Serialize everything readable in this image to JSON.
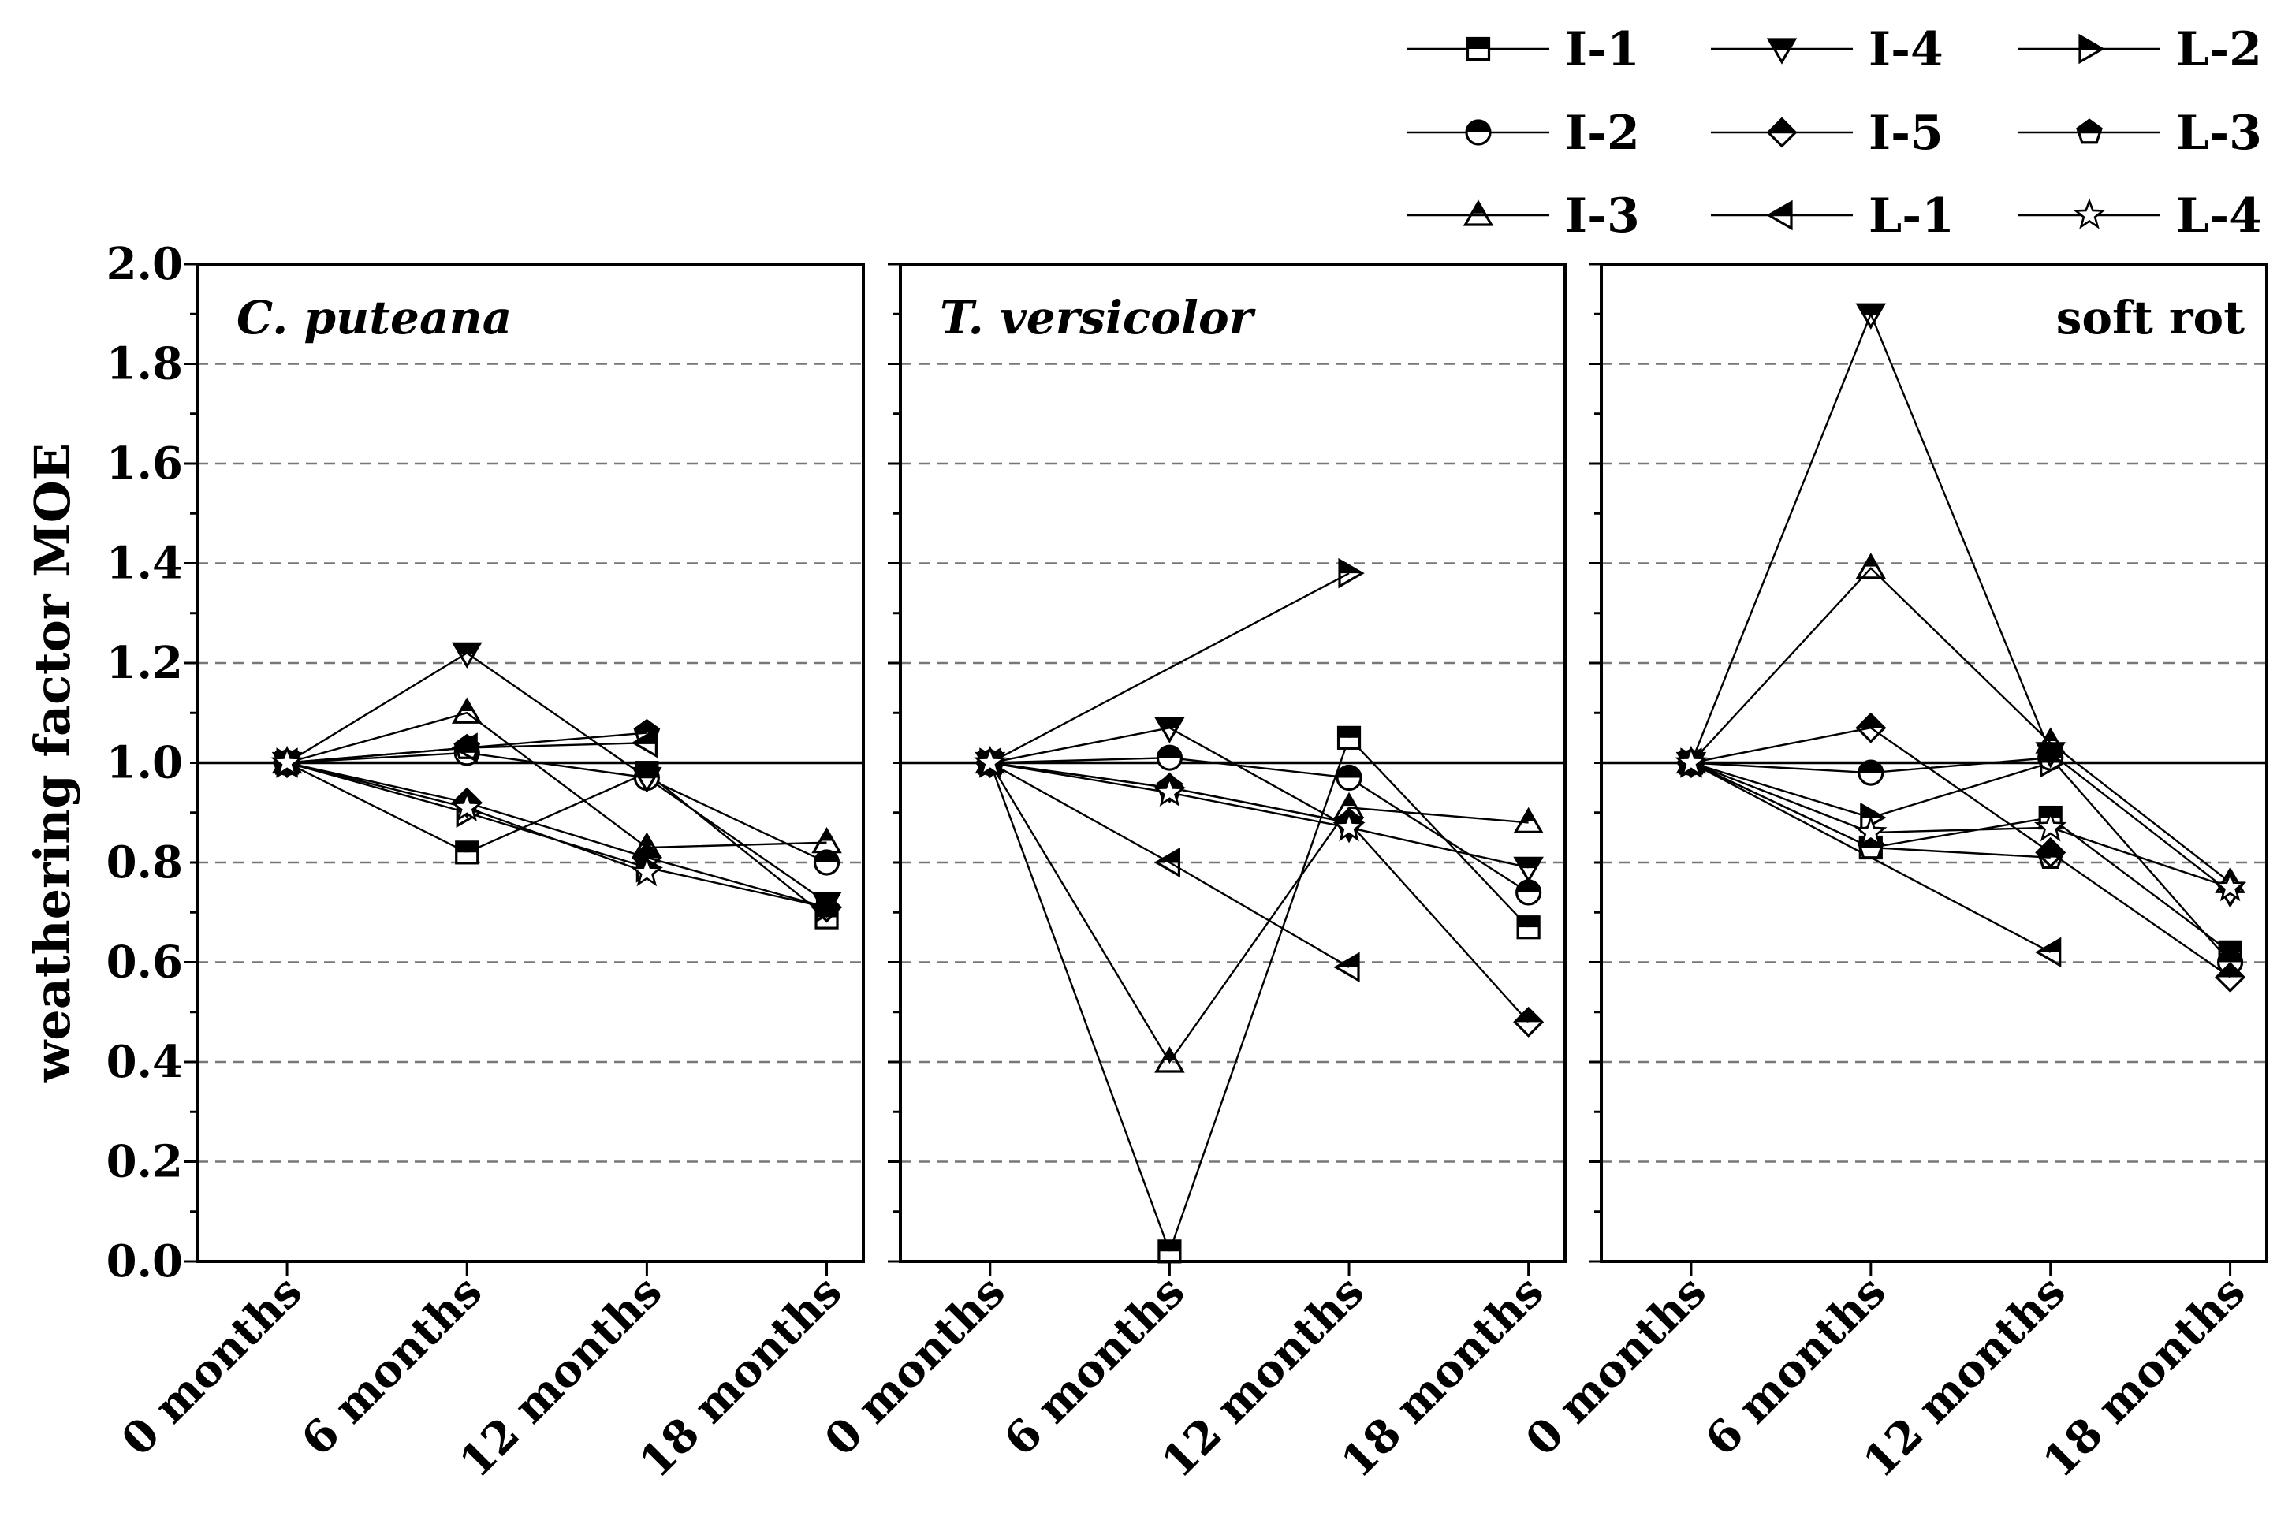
{
  "chart_data": {
    "type": "line",
    "ylabel": "weathering factor MOE",
    "ylim": [
      0.0,
      2.0
    ],
    "yticks": [
      "0.0",
      "0.2",
      "0.4",
      "0.6",
      "0.8",
      "1.0",
      "1.2",
      "1.4",
      "1.6",
      "1.8",
      "2.0"
    ],
    "grid": "dashed horizontal",
    "reference_line": 1.0,
    "categories": [
      "0 months",
      "6 months",
      "12 months",
      "18 months"
    ],
    "legend": {
      "position": "top-right",
      "entries": [
        {
          "name": "I-1",
          "marker": "square"
        },
        {
          "name": "I-4",
          "marker": "triangle-down"
        },
        {
          "name": "L-2",
          "marker": "triangle-right"
        },
        {
          "name": "I-2",
          "marker": "circle"
        },
        {
          "name": "I-5",
          "marker": "diamond"
        },
        {
          "name": "L-3",
          "marker": "pentagon"
        },
        {
          "name": "I-3",
          "marker": "triangle-up"
        },
        {
          "name": "L-1",
          "marker": "triangle-left"
        },
        {
          "name": "L-4",
          "marker": "star"
        }
      ]
    },
    "panels": [
      {
        "title": "C. puteana",
        "italic": true,
        "title_position": "top-left",
        "series": [
          {
            "name": "I-1",
            "values": [
              1.0,
              0.82,
              0.98,
              0.69
            ]
          },
          {
            "name": "I-2",
            "values": [
              1.0,
              1.02,
              0.97,
              0.8
            ]
          },
          {
            "name": "I-3",
            "values": [
              1.0,
              1.1,
              0.83,
              0.84
            ]
          },
          {
            "name": "I-4",
            "values": [
              1.0,
              1.22,
              0.97,
              0.72
            ]
          },
          {
            "name": "I-5",
            "values": [
              1.0,
              0.92,
              0.81,
              0.71
            ]
          },
          {
            "name": "L-1",
            "values": [
              1.0,
              1.03,
              1.04,
              null
            ]
          },
          {
            "name": "L-2",
            "values": [
              1.0,
              0.9,
              0.79,
              0.71
            ]
          },
          {
            "name": "L-3",
            "values": [
              1.0,
              1.03,
              1.06,
              null
            ]
          },
          {
            "name": "L-4",
            "values": [
              1.0,
              0.91,
              0.78,
              null
            ]
          }
        ]
      },
      {
        "title": "T. versicolor",
        "italic": true,
        "title_position": "top-left",
        "series": [
          {
            "name": "I-1",
            "values": [
              1.0,
              0.02,
              1.05,
              0.67
            ]
          },
          {
            "name": "I-2",
            "values": [
              1.0,
              1.01,
              0.97,
              0.74
            ]
          },
          {
            "name": "I-3",
            "values": [
              1.0,
              0.4,
              0.91,
              0.88
            ]
          },
          {
            "name": "I-4",
            "values": [
              1.0,
              1.07,
              0.87,
              0.79
            ]
          },
          {
            "name": "I-5",
            "values": [
              1.0,
              0.95,
              0.88,
              0.48
            ]
          },
          {
            "name": "L-1",
            "values": [
              1.0,
              0.8,
              0.59,
              null
            ]
          },
          {
            "name": "L-2",
            "values": [
              1.0,
              null,
              1.38,
              null
            ]
          },
          {
            "name": "L-3",
            "values": [
              1.0,
              0.95,
              0.88,
              null
            ]
          },
          {
            "name": "L-4",
            "values": [
              1.0,
              0.94,
              0.87,
              null
            ]
          }
        ]
      },
      {
        "title": "soft rot",
        "italic": false,
        "title_position": "top-right",
        "series": [
          {
            "name": "I-1",
            "values": [
              1.0,
              0.83,
              0.89,
              0.62
            ]
          },
          {
            "name": "I-2",
            "values": [
              1.0,
              0.98,
              1.01,
              0.6
            ]
          },
          {
            "name": "I-3",
            "values": [
              1.0,
              1.39,
              1.04,
              0.76
            ]
          },
          {
            "name": "I-4",
            "values": [
              1.0,
              1.9,
              1.02,
              0.74
            ]
          },
          {
            "name": "I-5",
            "values": [
              1.0,
              1.07,
              0.82,
              0.57
            ]
          },
          {
            "name": "L-1",
            "values": [
              1.0,
              null,
              0.62,
              null
            ]
          },
          {
            "name": "L-2",
            "values": [
              1.0,
              0.89,
              1.0,
              null
            ]
          },
          {
            "name": "L-3",
            "values": [
              1.0,
              0.83,
              0.81,
              null
            ]
          },
          {
            "name": "L-4",
            "values": [
              1.0,
              0.86,
              0.87,
              0.75
            ]
          }
        ]
      }
    ]
  }
}
